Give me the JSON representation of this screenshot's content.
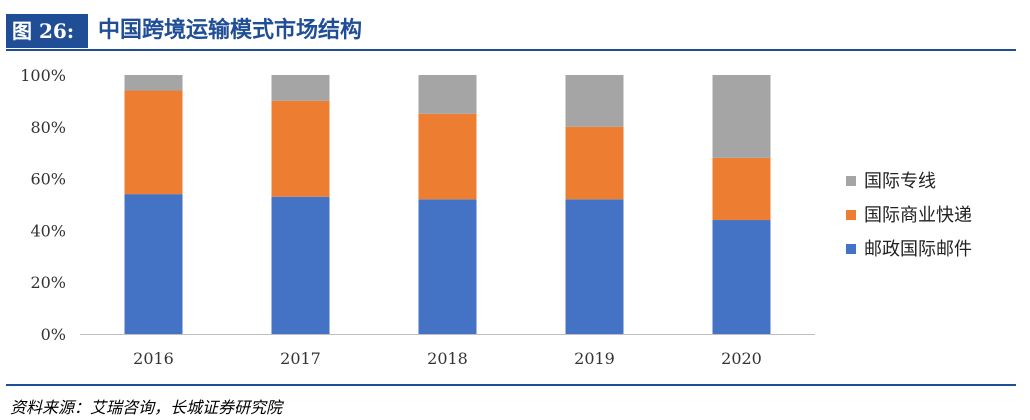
{
  "figure": {
    "label": "图 26:",
    "title": "中国跨境运输模式市场结构",
    "source": "资料来源：艾瑞咨询，长城证券研究院"
  },
  "chart_data": {
    "type": "bar",
    "stacked": true,
    "categories": [
      "2016",
      "2017",
      "2018",
      "2019",
      "2020"
    ],
    "series": [
      {
        "name": "邮政国际邮件",
        "color": "#4472c4",
        "values": [
          54,
          53,
          52,
          52,
          44
        ]
      },
      {
        "name": "国际商业快递",
        "color": "#ed7d31",
        "values": [
          40,
          37,
          33,
          28,
          24
        ]
      },
      {
        "name": "国际专线",
        "color": "#a5a5a5",
        "values": [
          6,
          10,
          15,
          20,
          32
        ]
      }
    ],
    "ylim": [
      0,
      100
    ],
    "yticks": [
      "0%",
      "20%",
      "40%",
      "60%",
      "80%",
      "100%"
    ],
    "grid": false,
    "legend_position": "right"
  }
}
